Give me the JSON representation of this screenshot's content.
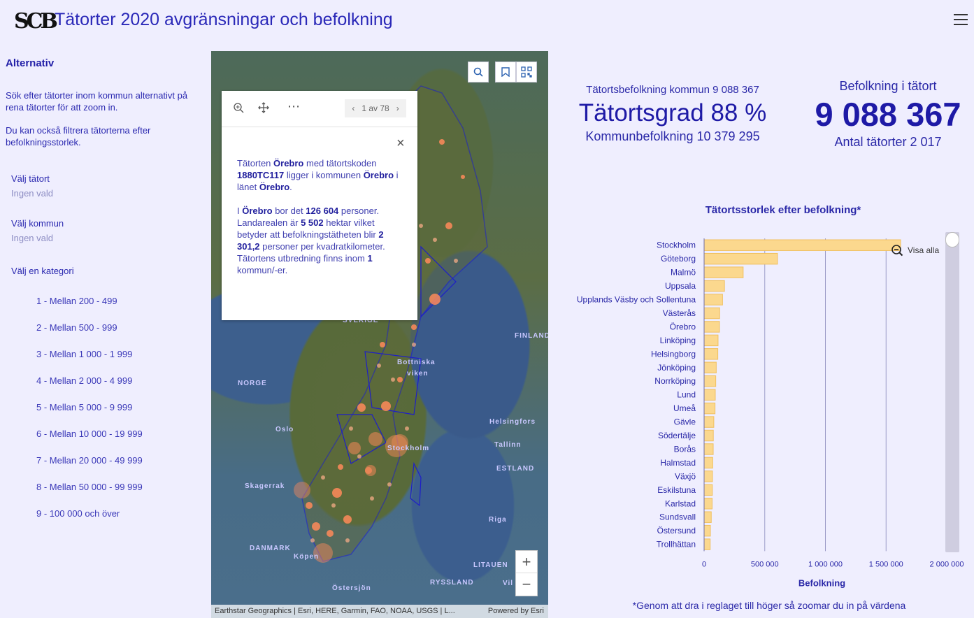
{
  "header": {
    "logo_text": "SCB",
    "title": "Tätorter 2020 avgränsningar och befolkning"
  },
  "sidebar": {
    "heading": "Alternativ",
    "intro1": "Sök efter tätorter inom kommun alternativt på rena tätorter för att zoom in.",
    "intro2": "Du kan också filtrera tätorterna efter befolkningsstorlek.",
    "select_tatort_label": "Välj tätort",
    "select_tatort_value": "Ingen vald",
    "select_kommun_label": "Välj kommun",
    "select_kommun_value": "Ingen vald",
    "category_label": "Välj en kategori",
    "categories": [
      "1 - Mellan 200 - 499",
      "2 - Mellan 500 - 999",
      "3 - Mellan 1 000 - 1 999",
      "4 - Mellan 2 000 - 4 999",
      "5 - Mellan 5 000 - 9 999",
      "6 - Mellan 10 000 - 19 999",
      "7 - Mellan 20 000 - 49 999",
      "8 - Mellan 50 000 - 99 999",
      "9 - 100 000 och över"
    ]
  },
  "map": {
    "pager": "1 av 78",
    "popup": {
      "t1": "Tätorten ",
      "name": "Örebro",
      "t2": " med tätortskoden ",
      "code": "1880TC117",
      "t3": " ligger i kommunen ",
      "kommun": "Örebro",
      "t4": " i länet ",
      "lan": "Örebro",
      "t5": ".",
      "t6": "I ",
      "name2": "Örebro",
      "t7": " bor det ",
      "pop": "126 604",
      "t8": " personer. Landarealen är ",
      "area": "5 502",
      "t9": " hektar vilket betyder att befolkningstätheten blir ",
      "density": "2 301,2",
      "t10": " personer per kvadratkilometer. Tätortens utbredning finns inom ",
      "count": "1",
      "t11": " kommun/-er."
    },
    "labels": {
      "norge": "NORGE",
      "finland": "FINLAND",
      "sverige": "SVERIGE",
      "bottniska": "Bottniska",
      "viken": "viken",
      "oslo": "Oslo",
      "skagerrak": "Skagerrak",
      "helsingfors": "Helsingfors",
      "tallinn": "Tallinn",
      "estland": "ESTLAND",
      "riga": "Riga",
      "danmark": "DANMARK",
      "kopen": "Köpen",
      "litauen": "LITAUEN",
      "ryssland": "RYSSLAND",
      "ostersjon": "Östersjön",
      "vil": "Vil",
      "stockholm": "Stockholm"
    },
    "attribution": "Earthstar Geographics | Esri, HERE, Garmin, FAO, NOAA, USGS | L...",
    "powered": "Powered by Esri"
  },
  "kpi": {
    "kommun_pop_label": "Tätortsbefolkning kommun 9 088 367",
    "grad": "Tätortsgrad 88 %",
    "kommun_total": "Kommunbefolkning 10 379 295",
    "tatort_label": "Befolkning i tätort",
    "tatort_value": "9 088 367",
    "antal": "Antal tätorter 2 017"
  },
  "chart_title": "Tätortsstorlek efter befolkning*",
  "chart_data": {
    "type": "bar",
    "orientation": "horizontal",
    "categories": [
      "Stockholm",
      "Göteborg",
      "Malmö",
      "Uppsala",
      "Upplands Väsby och Sollentuna",
      "Västerås",
      "Örebro",
      "Linköping",
      "Helsingborg",
      "Jönköping",
      "Norrköping",
      "Lund",
      "Umeå",
      "Gävle",
      "Södertälje",
      "Borås",
      "Halmstad",
      "Växjö",
      "Eskilstuna",
      "Karlstad",
      "Sundsvall",
      "Östersund",
      "Trollhättan"
    ],
    "values": [
      1620000,
      605000,
      322000,
      168000,
      152000,
      128000,
      126604,
      115000,
      113000,
      100000,
      96000,
      92000,
      90000,
      80000,
      76000,
      75000,
      71000,
      69000,
      68000,
      66000,
      59000,
      52000,
      50000
    ],
    "xlabel": "Befolkning",
    "xlim": [
      0,
      2000000
    ],
    "xticks": [
      0,
      500000,
      1000000,
      1500000,
      2000000
    ],
    "xtick_labels": [
      "0",
      "500 000",
      "1 000 000",
      "1 500 000",
      "2 000 000"
    ],
    "bar_color": "#fbd88e",
    "bar_edge": "#f0c060"
  },
  "chart_controls": {
    "show_all": "Visa alla"
  },
  "footnote": "*Genom att dra i reglaget till höger så zoomar du in på värdena"
}
